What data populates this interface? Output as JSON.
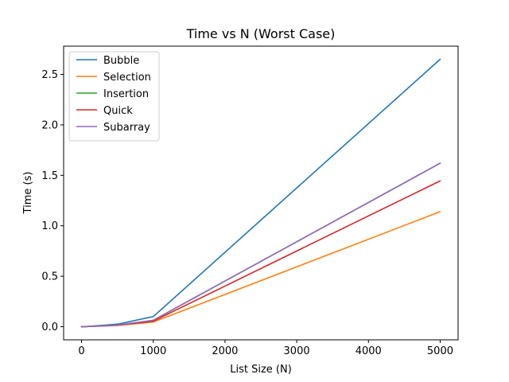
{
  "chart_data": {
    "type": "line",
    "title": "Time vs N (Worst Case)",
    "xlabel": "List Size (N)",
    "ylabel": "Time (s)",
    "xlim": [
      -250,
      5250
    ],
    "ylim": [
      -0.13,
      2.78
    ],
    "x_ticks": [
      0,
      1000,
      2000,
      3000,
      4000,
      5000
    ],
    "y_ticks": [
      0.0,
      0.5,
      1.0,
      1.5,
      2.0,
      2.5
    ],
    "x_tick_labels": [
      "0",
      "1000",
      "2000",
      "3000",
      "4000",
      "5000"
    ],
    "y_tick_labels": [
      "0.0",
      "0.5",
      "1.0",
      "1.5",
      "2.0",
      "2.5"
    ],
    "grid": false,
    "legend_position": "top-left",
    "x": [
      0,
      100,
      500,
      1000,
      5000
    ],
    "series": [
      {
        "name": "Bubble",
        "color": "#1f77b4",
        "values": [
          0.0,
          0.004,
          0.025,
          0.1,
          2.65
        ]
      },
      {
        "name": "Selection",
        "color": "#ff7f0e",
        "values": [
          0.0,
          0.002,
          0.012,
          0.046,
          1.14
        ]
      },
      {
        "name": "Insertion",
        "color": "#2ca02c",
        "values": [
          0.0,
          0.003,
          0.016,
          0.063,
          1.62
        ]
      },
      {
        "name": "Quick",
        "color": "#d62728",
        "values": [
          0.0,
          0.002,
          0.014,
          0.055,
          1.445
        ]
      },
      {
        "name": "Subarray",
        "color": "#9467bd",
        "values": [
          0.0,
          0.003,
          0.016,
          0.064,
          1.62
        ]
      }
    ]
  }
}
